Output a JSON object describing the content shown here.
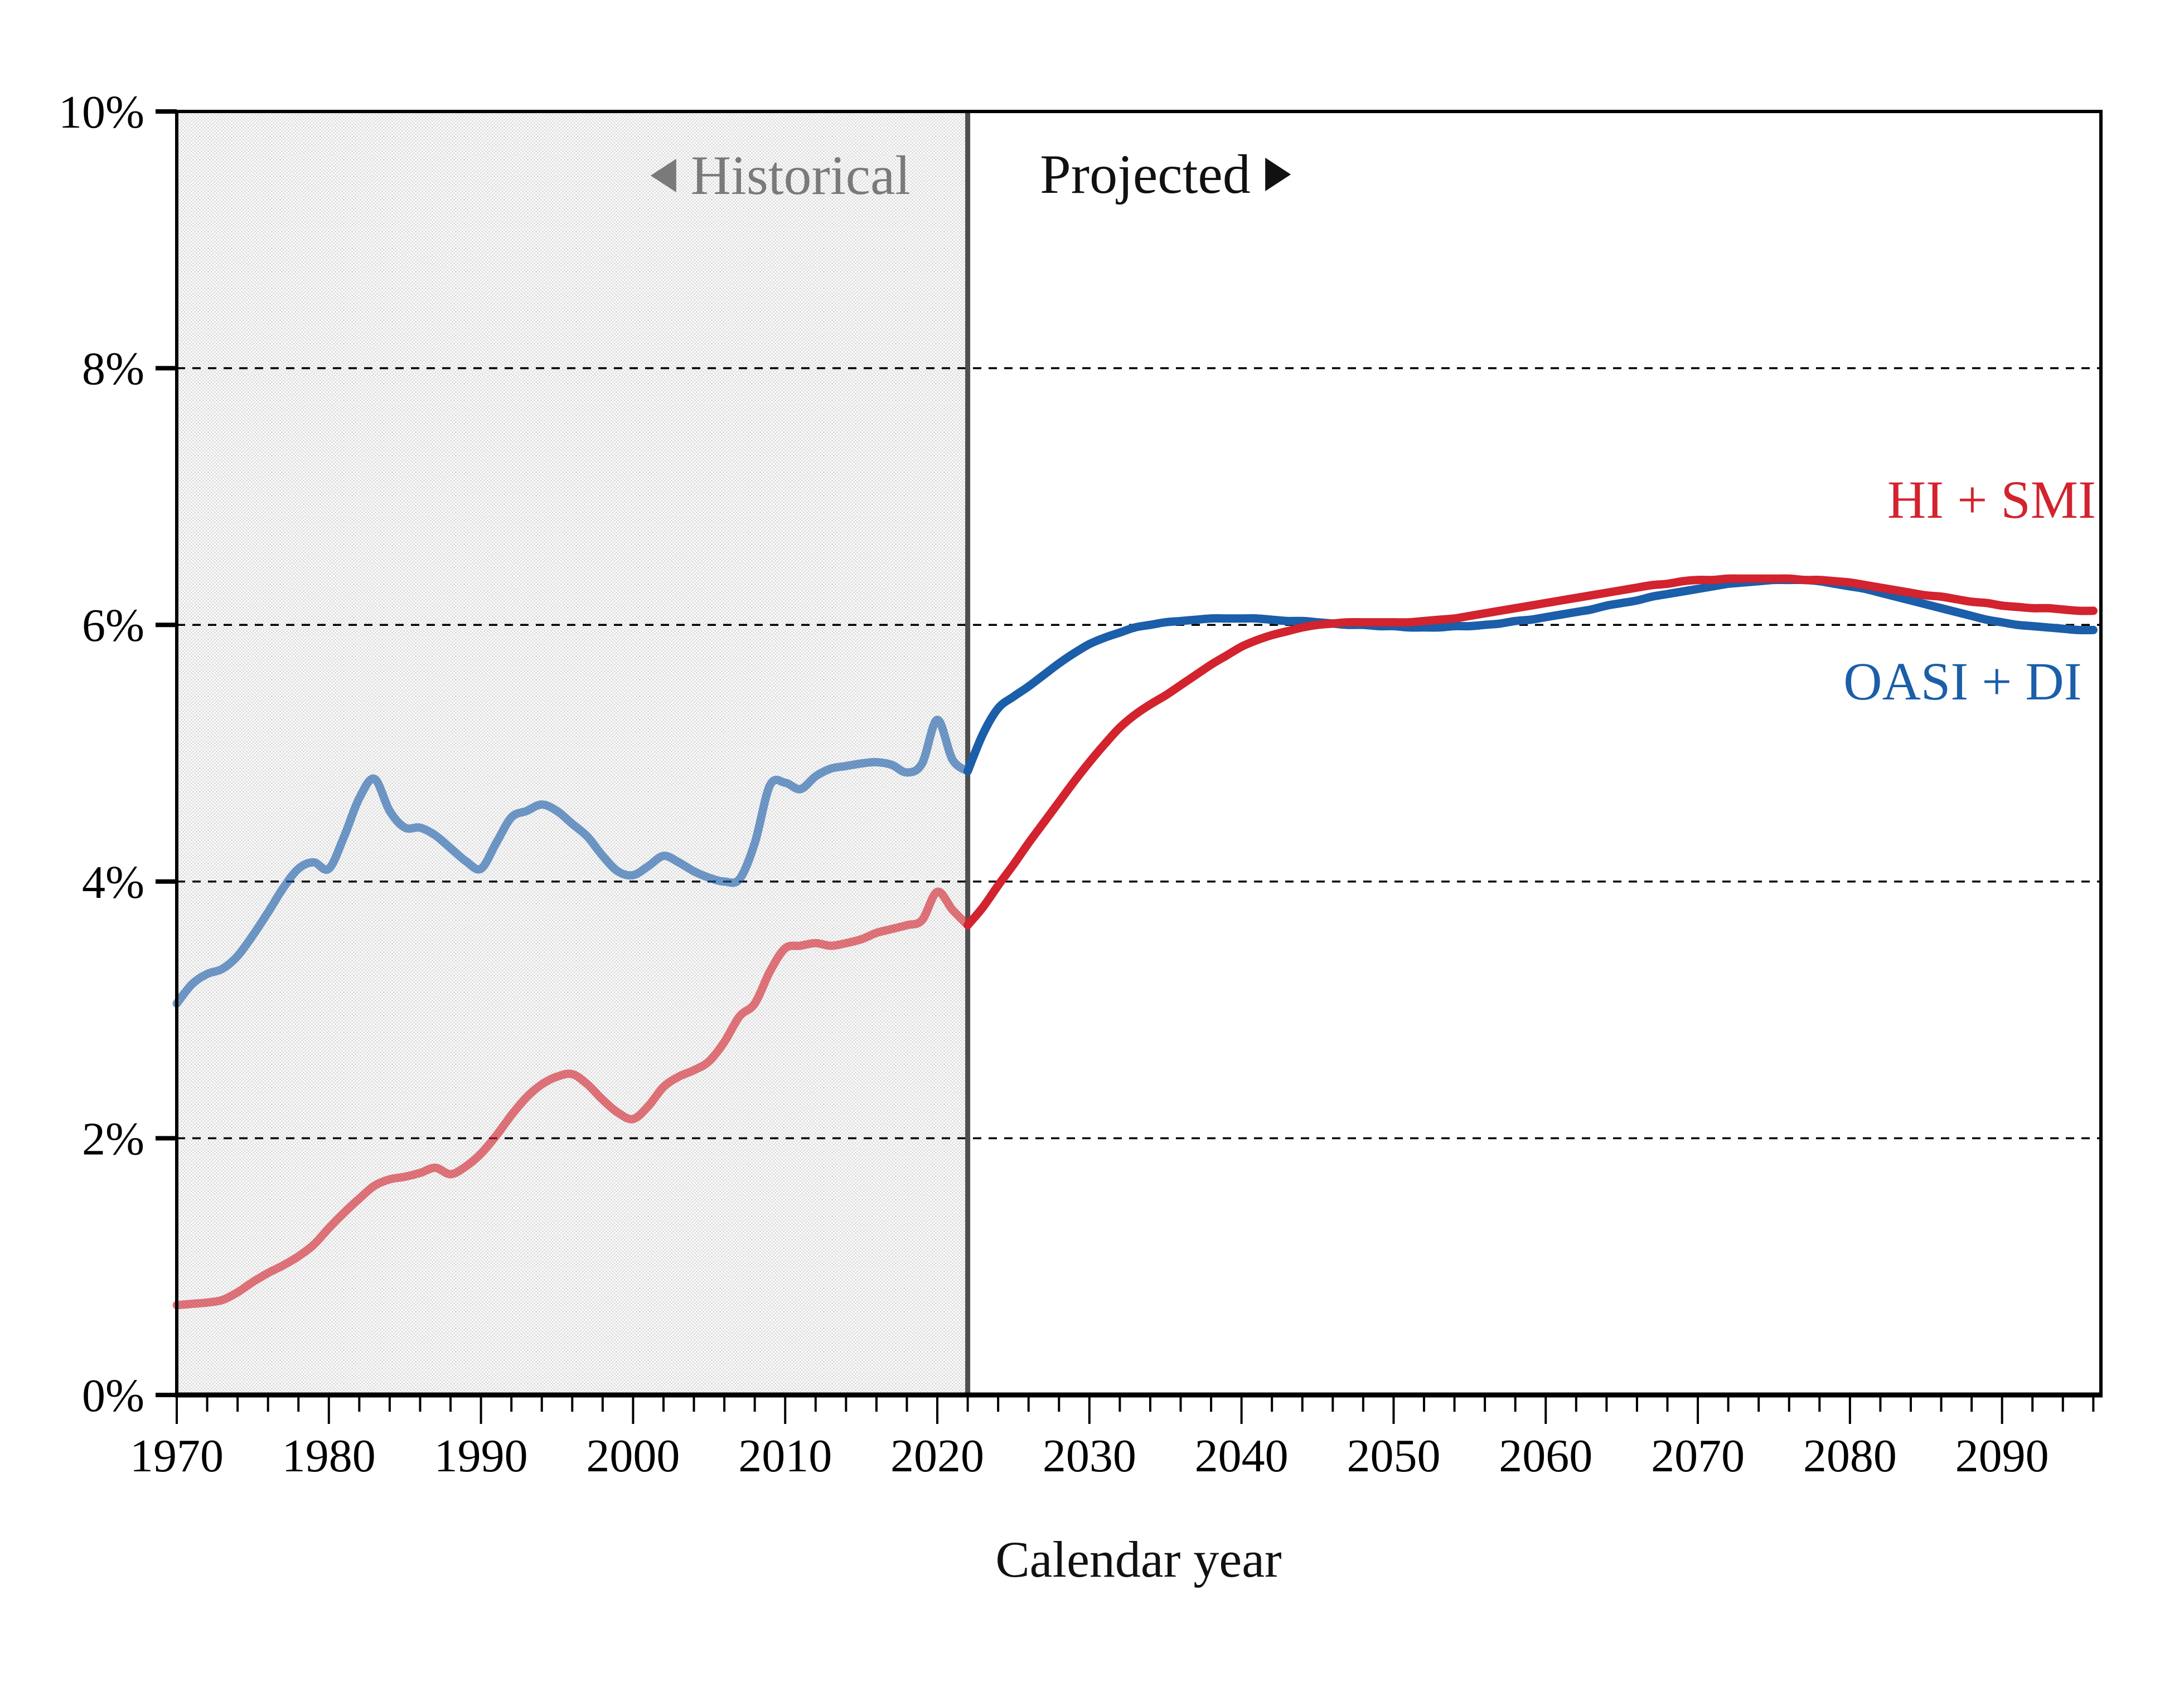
{
  "labels": {
    "historical": "Historical",
    "projected": "Projected",
    "xlabel": "Calendar year"
  },
  "legend": {
    "hi_smi": "HI + SMI",
    "oasi_di": "OASI + DI"
  },
  "colors": {
    "hi_smi": "#d2232e",
    "oasi_di": "#1b5ea9",
    "historical_line_opacity": 0.62,
    "historical_region_dot": "#dedede",
    "historical_region_bg": "#ffffff",
    "divider": "#404040",
    "gridline": "#000000",
    "axis": "#000000",
    "historical_label_color": "#7a7a7a",
    "projected_label_color": "#111111"
  },
  "chart_data": {
    "type": "line",
    "title": "",
    "xlabel": "Calendar year",
    "ylabel": "",
    "x_range": [
      1970,
      2096.5
    ],
    "y_range_percent": [
      0,
      10
    ],
    "historical_boundary_year": 2022,
    "grid_values_percent": [
      2,
      4,
      6,
      8
    ],
    "y_ticks": [
      {
        "v": 0,
        "label": "0%"
      },
      {
        "v": 2,
        "label": "2%"
      },
      {
        "v": 4,
        "label": "4%"
      },
      {
        "v": 6,
        "label": "6%"
      },
      {
        "v": 8,
        "label": "8%"
      },
      {
        "v": 10,
        "label": "10%"
      }
    ],
    "x_ticks_labeled": [
      {
        "v": 1970,
        "label": "1970"
      },
      {
        "v": 1980,
        "label": "1980"
      },
      {
        "v": 1990,
        "label": "1990"
      },
      {
        "v": 2000,
        "label": "2000"
      },
      {
        "v": 2010,
        "label": "2010"
      },
      {
        "v": 2020,
        "label": "2020"
      },
      {
        "v": 2030,
        "label": "2030"
      },
      {
        "v": 2040,
        "label": "2040"
      },
      {
        "v": 2050,
        "label": "2050"
      },
      {
        "v": 2060,
        "label": "2060"
      },
      {
        "v": 2070,
        "label": "2070"
      },
      {
        "v": 2080,
        "label": "2080"
      },
      {
        "v": 2090,
        "label": "2090"
      }
    ],
    "x_tick_minor_step": 2,
    "x_tick_minor_end": 2096,
    "series": [
      {
        "name": "OASI + DI",
        "color_key": "oasi_di",
        "historical": [
          [
            1970,
            3.05
          ],
          [
            1971,
            3.2
          ],
          [
            1972,
            3.28
          ],
          [
            1973,
            3.32
          ],
          [
            1974,
            3.42
          ],
          [
            1975,
            3.58
          ],
          [
            1976,
            3.76
          ],
          [
            1977,
            3.95
          ],
          [
            1978,
            4.1
          ],
          [
            1979,
            4.15
          ],
          [
            1980,
            4.1
          ],
          [
            1981,
            4.35
          ],
          [
            1982,
            4.65
          ],
          [
            1983,
            4.8
          ],
          [
            1984,
            4.55
          ],
          [
            1985,
            4.42
          ],
          [
            1986,
            4.42
          ],
          [
            1987,
            4.36
          ],
          [
            1988,
            4.26
          ],
          [
            1989,
            4.16
          ],
          [
            1990,
            4.1
          ],
          [
            1991,
            4.3
          ],
          [
            1992,
            4.5
          ],
          [
            1993,
            4.55
          ],
          [
            1994,
            4.6
          ],
          [
            1995,
            4.55
          ],
          [
            1996,
            4.45
          ],
          [
            1997,
            4.35
          ],
          [
            1998,
            4.2
          ],
          [
            1999,
            4.08
          ],
          [
            2000,
            4.05
          ],
          [
            2001,
            4.12
          ],
          [
            2002,
            4.2
          ],
          [
            2003,
            4.15
          ],
          [
            2004,
            4.08
          ],
          [
            2005,
            4.03
          ],
          [
            2006,
            4.0
          ],
          [
            2007,
            4.02
          ],
          [
            2008,
            4.3
          ],
          [
            2009,
            4.75
          ],
          [
            2010,
            4.77
          ],
          [
            2011,
            4.72
          ],
          [
            2012,
            4.82
          ],
          [
            2013,
            4.88
          ],
          [
            2014,
            4.9
          ],
          [
            2015,
            4.92
          ],
          [
            2016,
            4.93
          ],
          [
            2017,
            4.91
          ],
          [
            2018,
            4.85
          ],
          [
            2019,
            4.92
          ],
          [
            2020,
            5.26
          ],
          [
            2021,
            4.95
          ],
          [
            2022,
            4.86
          ]
        ],
        "projected": [
          [
            2022,
            4.86
          ],
          [
            2023,
            5.15
          ],
          [
            2024,
            5.35
          ],
          [
            2025,
            5.44
          ],
          [
            2026,
            5.52
          ],
          [
            2027,
            5.61
          ],
          [
            2028,
            5.7
          ],
          [
            2029,
            5.78
          ],
          [
            2030,
            5.85
          ],
          [
            2031,
            5.9
          ],
          [
            2032,
            5.94
          ],
          [
            2033,
            5.98
          ],
          [
            2034,
            6.0
          ],
          [
            2035,
            6.02
          ],
          [
            2036,
            6.03
          ],
          [
            2037,
            6.04
          ],
          [
            2038,
            6.05
          ],
          [
            2039,
            6.05
          ],
          [
            2040,
            6.05
          ],
          [
            2041,
            6.05
          ],
          [
            2042,
            6.04
          ],
          [
            2043,
            6.03
          ],
          [
            2044,
            6.03
          ],
          [
            2045,
            6.02
          ],
          [
            2046,
            6.01
          ],
          [
            2047,
            6.0
          ],
          [
            2048,
            6.0
          ],
          [
            2049,
            5.99
          ],
          [
            2050,
            5.99
          ],
          [
            2051,
            5.98
          ],
          [
            2052,
            5.98
          ],
          [
            2053,
            5.98
          ],
          [
            2054,
            5.99
          ],
          [
            2055,
            5.99
          ],
          [
            2056,
            6.0
          ],
          [
            2057,
            6.01
          ],
          [
            2058,
            6.03
          ],
          [
            2059,
            6.04
          ],
          [
            2060,
            6.06
          ],
          [
            2061,
            6.08
          ],
          [
            2062,
            6.1
          ],
          [
            2063,
            6.12
          ],
          [
            2064,
            6.15
          ],
          [
            2065,
            6.17
          ],
          [
            2066,
            6.19
          ],
          [
            2067,
            6.22
          ],
          [
            2068,
            6.24
          ],
          [
            2069,
            6.26
          ],
          [
            2070,
            6.28
          ],
          [
            2071,
            6.3
          ],
          [
            2072,
            6.32
          ],
          [
            2073,
            6.33
          ],
          [
            2074,
            6.34
          ],
          [
            2075,
            6.35
          ],
          [
            2076,
            6.35
          ],
          [
            2077,
            6.35
          ],
          [
            2078,
            6.34
          ],
          [
            2079,
            6.32
          ],
          [
            2080,
            6.3
          ],
          [
            2081,
            6.28
          ],
          [
            2082,
            6.25
          ],
          [
            2083,
            6.22
          ],
          [
            2084,
            6.19
          ],
          [
            2085,
            6.16
          ],
          [
            2086,
            6.13
          ],
          [
            2087,
            6.1
          ],
          [
            2088,
            6.07
          ],
          [
            2089,
            6.04
          ],
          [
            2090,
            6.02
          ],
          [
            2091,
            6.0
          ],
          [
            2092,
            5.99
          ],
          [
            2093,
            5.98
          ],
          [
            2094,
            5.97
          ],
          [
            2095,
            5.96
          ],
          [
            2096,
            5.96
          ]
        ]
      },
      {
        "name": "HI + SMI",
        "color_key": "hi_smi",
        "historical": [
          [
            1970,
            0.7
          ],
          [
            1971,
            0.71
          ],
          [
            1972,
            0.72
          ],
          [
            1973,
            0.74
          ],
          [
            1974,
            0.8
          ],
          [
            1975,
            0.88
          ],
          [
            1976,
            0.95
          ],
          [
            1977,
            1.01
          ],
          [
            1978,
            1.08
          ],
          [
            1979,
            1.17
          ],
          [
            1980,
            1.3
          ],
          [
            1981,
            1.42
          ],
          [
            1982,
            1.53
          ],
          [
            1983,
            1.63
          ],
          [
            1984,
            1.68
          ],
          [
            1985,
            1.7
          ],
          [
            1986,
            1.73
          ],
          [
            1987,
            1.77
          ],
          [
            1988,
            1.72
          ],
          [
            1989,
            1.78
          ],
          [
            1990,
            1.88
          ],
          [
            1991,
            2.02
          ],
          [
            1992,
            2.18
          ],
          [
            1993,
            2.32
          ],
          [
            1994,
            2.42
          ],
          [
            1995,
            2.48
          ],
          [
            1996,
            2.5
          ],
          [
            1997,
            2.42
          ],
          [
            1998,
            2.3
          ],
          [
            1999,
            2.2
          ],
          [
            2000,
            2.15
          ],
          [
            2001,
            2.25
          ],
          [
            2002,
            2.4
          ],
          [
            2003,
            2.48
          ],
          [
            2004,
            2.53
          ],
          [
            2005,
            2.6
          ],
          [
            2006,
            2.75
          ],
          [
            2007,
            2.95
          ],
          [
            2008,
            3.05
          ],
          [
            2009,
            3.3
          ],
          [
            2010,
            3.48
          ],
          [
            2011,
            3.5
          ],
          [
            2012,
            3.52
          ],
          [
            2013,
            3.5
          ],
          [
            2014,
            3.52
          ],
          [
            2015,
            3.55
          ],
          [
            2016,
            3.6
          ],
          [
            2017,
            3.63
          ],
          [
            2018,
            3.66
          ],
          [
            2019,
            3.7
          ],
          [
            2020,
            3.92
          ],
          [
            2021,
            3.78
          ],
          [
            2022,
            3.66
          ]
        ],
        "projected": [
          [
            2022,
            3.66
          ],
          [
            2023,
            3.8
          ],
          [
            2024,
            3.97
          ],
          [
            2025,
            4.13
          ],
          [
            2026,
            4.3
          ],
          [
            2027,
            4.46
          ],
          [
            2028,
            4.62
          ],
          [
            2029,
            4.78
          ],
          [
            2030,
            4.93
          ],
          [
            2031,
            5.07
          ],
          [
            2032,
            5.2
          ],
          [
            2033,
            5.3
          ],
          [
            2034,
            5.38
          ],
          [
            2035,
            5.45
          ],
          [
            2036,
            5.53
          ],
          [
            2037,
            5.61
          ],
          [
            2038,
            5.69
          ],
          [
            2039,
            5.76
          ],
          [
            2040,
            5.83
          ],
          [
            2041,
            5.88
          ],
          [
            2042,
            5.92
          ],
          [
            2043,
            5.95
          ],
          [
            2044,
            5.98
          ],
          [
            2045,
            6.0
          ],
          [
            2046,
            6.01
          ],
          [
            2047,
            6.02
          ],
          [
            2048,
            6.02
          ],
          [
            2049,
            6.02
          ],
          [
            2050,
            6.02
          ],
          [
            2051,
            6.02
          ],
          [
            2052,
            6.03
          ],
          [
            2053,
            6.04
          ],
          [
            2054,
            6.05
          ],
          [
            2055,
            6.07
          ],
          [
            2056,
            6.09
          ],
          [
            2057,
            6.11
          ],
          [
            2058,
            6.13
          ],
          [
            2059,
            6.15
          ],
          [
            2060,
            6.17
          ],
          [
            2061,
            6.19
          ],
          [
            2062,
            6.21
          ],
          [
            2063,
            6.23
          ],
          [
            2064,
            6.25
          ],
          [
            2065,
            6.27
          ],
          [
            2066,
            6.29
          ],
          [
            2067,
            6.31
          ],
          [
            2068,
            6.32
          ],
          [
            2069,
            6.34
          ],
          [
            2070,
            6.35
          ],
          [
            2071,
            6.35
          ],
          [
            2072,
            6.36
          ],
          [
            2073,
            6.36
          ],
          [
            2074,
            6.36
          ],
          [
            2075,
            6.36
          ],
          [
            2076,
            6.36
          ],
          [
            2077,
            6.35
          ],
          [
            2078,
            6.35
          ],
          [
            2079,
            6.34
          ],
          [
            2080,
            6.33
          ],
          [
            2081,
            6.31
          ],
          [
            2082,
            6.29
          ],
          [
            2083,
            6.27
          ],
          [
            2084,
            6.25
          ],
          [
            2085,
            6.23
          ],
          [
            2086,
            6.22
          ],
          [
            2087,
            6.2
          ],
          [
            2088,
            6.18
          ],
          [
            2089,
            6.17
          ],
          [
            2090,
            6.15
          ],
          [
            2091,
            6.14
          ],
          [
            2092,
            6.13
          ],
          [
            2093,
            6.13
          ],
          [
            2094,
            6.12
          ],
          [
            2095,
            6.11
          ],
          [
            2096,
            6.11
          ]
        ]
      }
    ]
  }
}
